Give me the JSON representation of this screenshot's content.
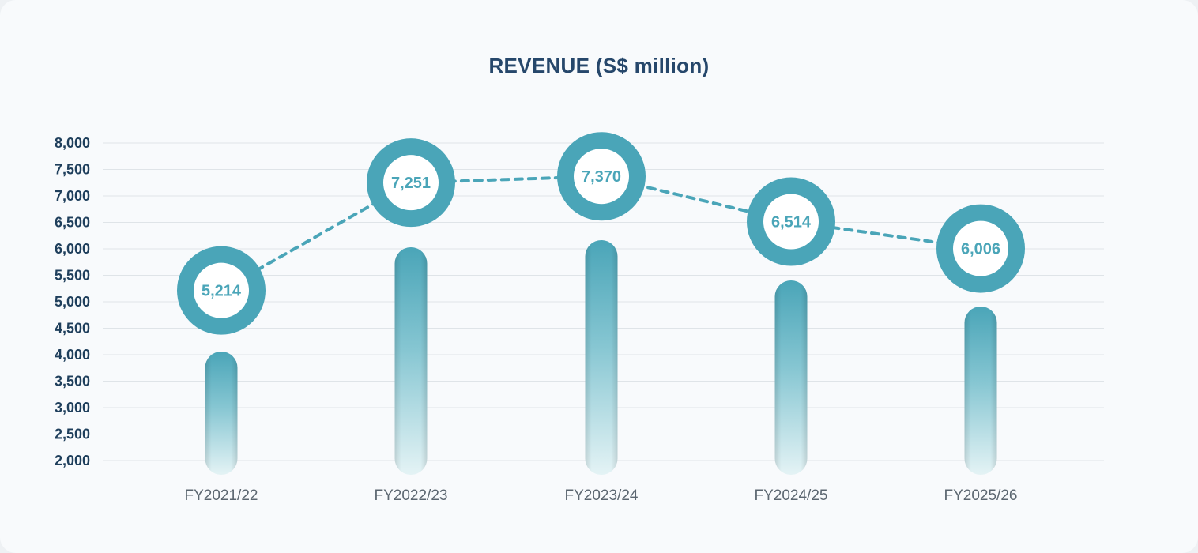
{
  "chart_data": {
    "type": "bar",
    "title": "REVENUE (S$ million)",
    "categories": [
      "FY2021/22",
      "FY2022/23",
      "FY2023/24",
      "FY2024/25",
      "FY2025/26"
    ],
    "values": [
      5214,
      7251,
      7370,
      6514,
      6006
    ],
    "value_labels": [
      "5,214",
      "7,251",
      "7,370",
      "6,514",
      "6,006"
    ],
    "y_ticks": [
      "2,000",
      "2,500",
      "3,000",
      "3,500",
      "4,000",
      "4,500",
      "5,000",
      "5,500",
      "6,000",
      "6,500",
      "7,000",
      "7,500",
      "8,000"
    ],
    "ylim": [
      2000,
      8000
    ],
    "grid": true,
    "markers": "circle value markers joined by a dotted line",
    "colors": {
      "accent": "#4aa5b8",
      "bar_top": "#4aa5b8",
      "bar_bottom": "#e4f3f5",
      "title": "#26476b",
      "gridline": "#dfe4e8"
    }
  }
}
